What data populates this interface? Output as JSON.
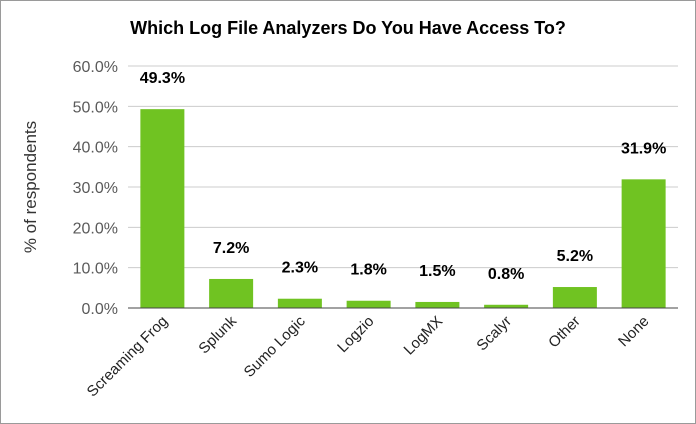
{
  "chart_data": {
    "type": "bar",
    "title": "Which Log File Analyzers Do You Have Access To?",
    "ylabel": "% of respondents",
    "xlabel": "",
    "categories": [
      "Screaming Frog",
      "Splunk",
      "Sumo Logic",
      "Logzio",
      "LogMX",
      "Scalyr",
      "Other",
      "None"
    ],
    "values": [
      49.3,
      7.2,
      2.3,
      1.8,
      1.5,
      0.8,
      5.2,
      31.9
    ],
    "data_labels": [
      "49.3%",
      "7.2%",
      "2.3%",
      "1.8%",
      "1.5%",
      "0.8%",
      "5.2%",
      "31.9%"
    ],
    "ylim": [
      0,
      60
    ],
    "yticks": [
      "0.0%",
      "10.0%",
      "20.0%",
      "30.0%",
      "40.0%",
      "50.0%",
      "60.0%"
    ],
    "grid": true,
    "legend": "none",
    "bar_color": "#70c322",
    "grid_color": "#cccccc"
  }
}
